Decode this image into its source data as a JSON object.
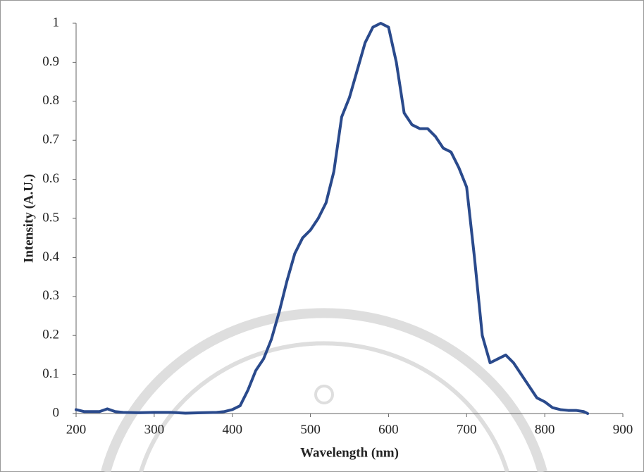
{
  "chart_data": {
    "type": "line",
    "xlabel": "Wavelength (nm)",
    "ylabel": "Intensity (A.U.)",
    "x": [
      200,
      210,
      220,
      230,
      240,
      250,
      260,
      280,
      300,
      320,
      340,
      360,
      380,
      390,
      400,
      410,
      420,
      430,
      440,
      450,
      460,
      470,
      480,
      490,
      500,
      510,
      520,
      530,
      540,
      550,
      560,
      570,
      580,
      590,
      600,
      610,
      620,
      630,
      640,
      650,
      660,
      670,
      680,
      690,
      700,
      710,
      720,
      730,
      740,
      750,
      760,
      770,
      780,
      790,
      800,
      810,
      820,
      830,
      840,
      850,
      855
    ],
    "values": [
      0.01,
      0.005,
      0.005,
      0.005,
      0.012,
      0.005,
      0.003,
      0.002,
      0.003,
      0.003,
      0.001,
      0.002,
      0.003,
      0.005,
      0.01,
      0.02,
      0.06,
      0.11,
      0.14,
      0.19,
      0.26,
      0.34,
      0.41,
      0.45,
      0.47,
      0.5,
      0.54,
      0.62,
      0.76,
      0.81,
      0.88,
      0.95,
      0.99,
      1.0,
      0.99,
      0.9,
      0.77,
      0.74,
      0.73,
      0.73,
      0.71,
      0.68,
      0.67,
      0.63,
      0.58,
      0.4,
      0.2,
      0.13,
      0.14,
      0.15,
      0.13,
      0.1,
      0.07,
      0.04,
      0.03,
      0.015,
      0.01,
      0.008,
      0.008,
      0.005,
      0
    ],
    "color": "#2a4a8c",
    "xlim": [
      200,
      900
    ],
    "xticks": [
      200,
      300,
      400,
      500,
      600,
      700,
      800,
      900
    ],
    "ylim": [
      0,
      1
    ],
    "yticks": [
      0,
      0.1,
      0.2,
      0.3,
      0.4,
      0.5,
      0.6,
      0.7,
      0.8,
      0.9,
      1
    ],
    "grid": false
  }
}
